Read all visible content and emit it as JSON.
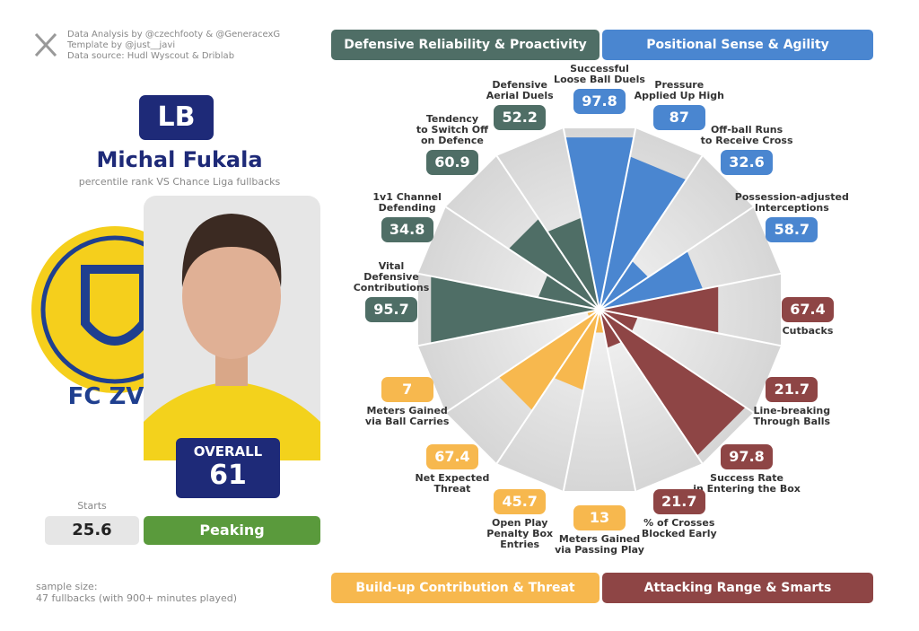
{
  "credits": [
    "Data Analysis by @czechfooty & @GeneracexG",
    "Template by @just__javi",
    "Data source: Hudl Wyscout & Driblab"
  ],
  "player": {
    "position": "LB",
    "name": "Michal Fukala",
    "subtitle": "percentile rank VS Chance Liga fullbacks",
    "club_text": "FC ZV",
    "overall_label": "OVERALL",
    "overall": 61,
    "starts_label": "Starts",
    "starts": 25.6,
    "form": "Peaking"
  },
  "sample": "sample size:\n47 fullbacks (with 900+ minutes played)",
  "chart_data": {
    "type": "pizza",
    "ylim": [
      0,
      100
    ],
    "series": [
      {
        "name": "Positional Sense & Agility",
        "color": "#4a86d0",
        "legend": "top-right",
        "categories": [
          "Successful\nLoose Ball Duels",
          "Pressure\nApplied Up High",
          "Off-ball Runs\nto Receive Cross",
          "Possession-adjusted\nInterceptions"
        ],
        "values": [
          97.8,
          87,
          32.6,
          58.7
        ]
      },
      {
        "name": "Attacking Range & Smarts",
        "color": "#8e4545",
        "legend": "bottom-right",
        "categories": [
          "Cutbacks",
          "Line-breaking\nThrough Balls",
          "Success Rate\nin Entering the Box",
          "% of Crosses\nBlocked Early"
        ],
        "values": [
          67.4,
          21.7,
          97.8,
          21.7
        ]
      },
      {
        "name": "Build-up Contribution & Threat",
        "color": "#f7b84e",
        "legend": "bottom-left",
        "categories": [
          "Meters Gained\nvia Passing Play",
          "Open Play\nPenalty Box\nEntries",
          "Net Expected\nThreat",
          "Meters Gained\nvia Ball Carries"
        ],
        "values": [
          13,
          45.7,
          67.4,
          7
        ]
      },
      {
        "name": "Defensive Reliability & Proactivity",
        "color": "#4f6e66",
        "legend": "top-left",
        "categories": [
          "Vital\nDefensive\nContributions",
          "1v1 Channel\nDefending",
          "Tendency\nto Switch Off\non Defence",
          "Defensive\nAerial Duels"
        ],
        "values": [
          95.7,
          34.8,
          60.9,
          52.2
        ]
      }
    ]
  }
}
